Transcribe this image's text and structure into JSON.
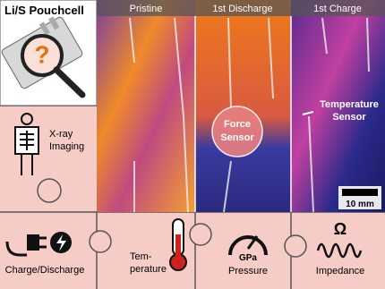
{
  "header": {
    "title": "Li/S Pouchcell",
    "symbol": "?"
  },
  "panels": [
    {
      "label": "Pristine"
    },
    {
      "label": "1st Discharge"
    },
    {
      "label": "1st Charge"
    }
  ],
  "annotations": {
    "force_sensor": [
      "Force",
      "Sensor"
    ],
    "temperature_sensor": [
      "Temperature",
      "Sensor"
    ],
    "scale_bar": "10 mm"
  },
  "methods": {
    "xray": [
      "X-ray",
      "Imaging"
    ],
    "charge": "Charge/Discharge",
    "temperature": [
      "Tem-",
      "perature"
    ],
    "pressure": {
      "unit": "GPa",
      "label": "Pressure"
    },
    "impedance": {
      "symbol": "Ω",
      "label": "Impedance"
    }
  }
}
